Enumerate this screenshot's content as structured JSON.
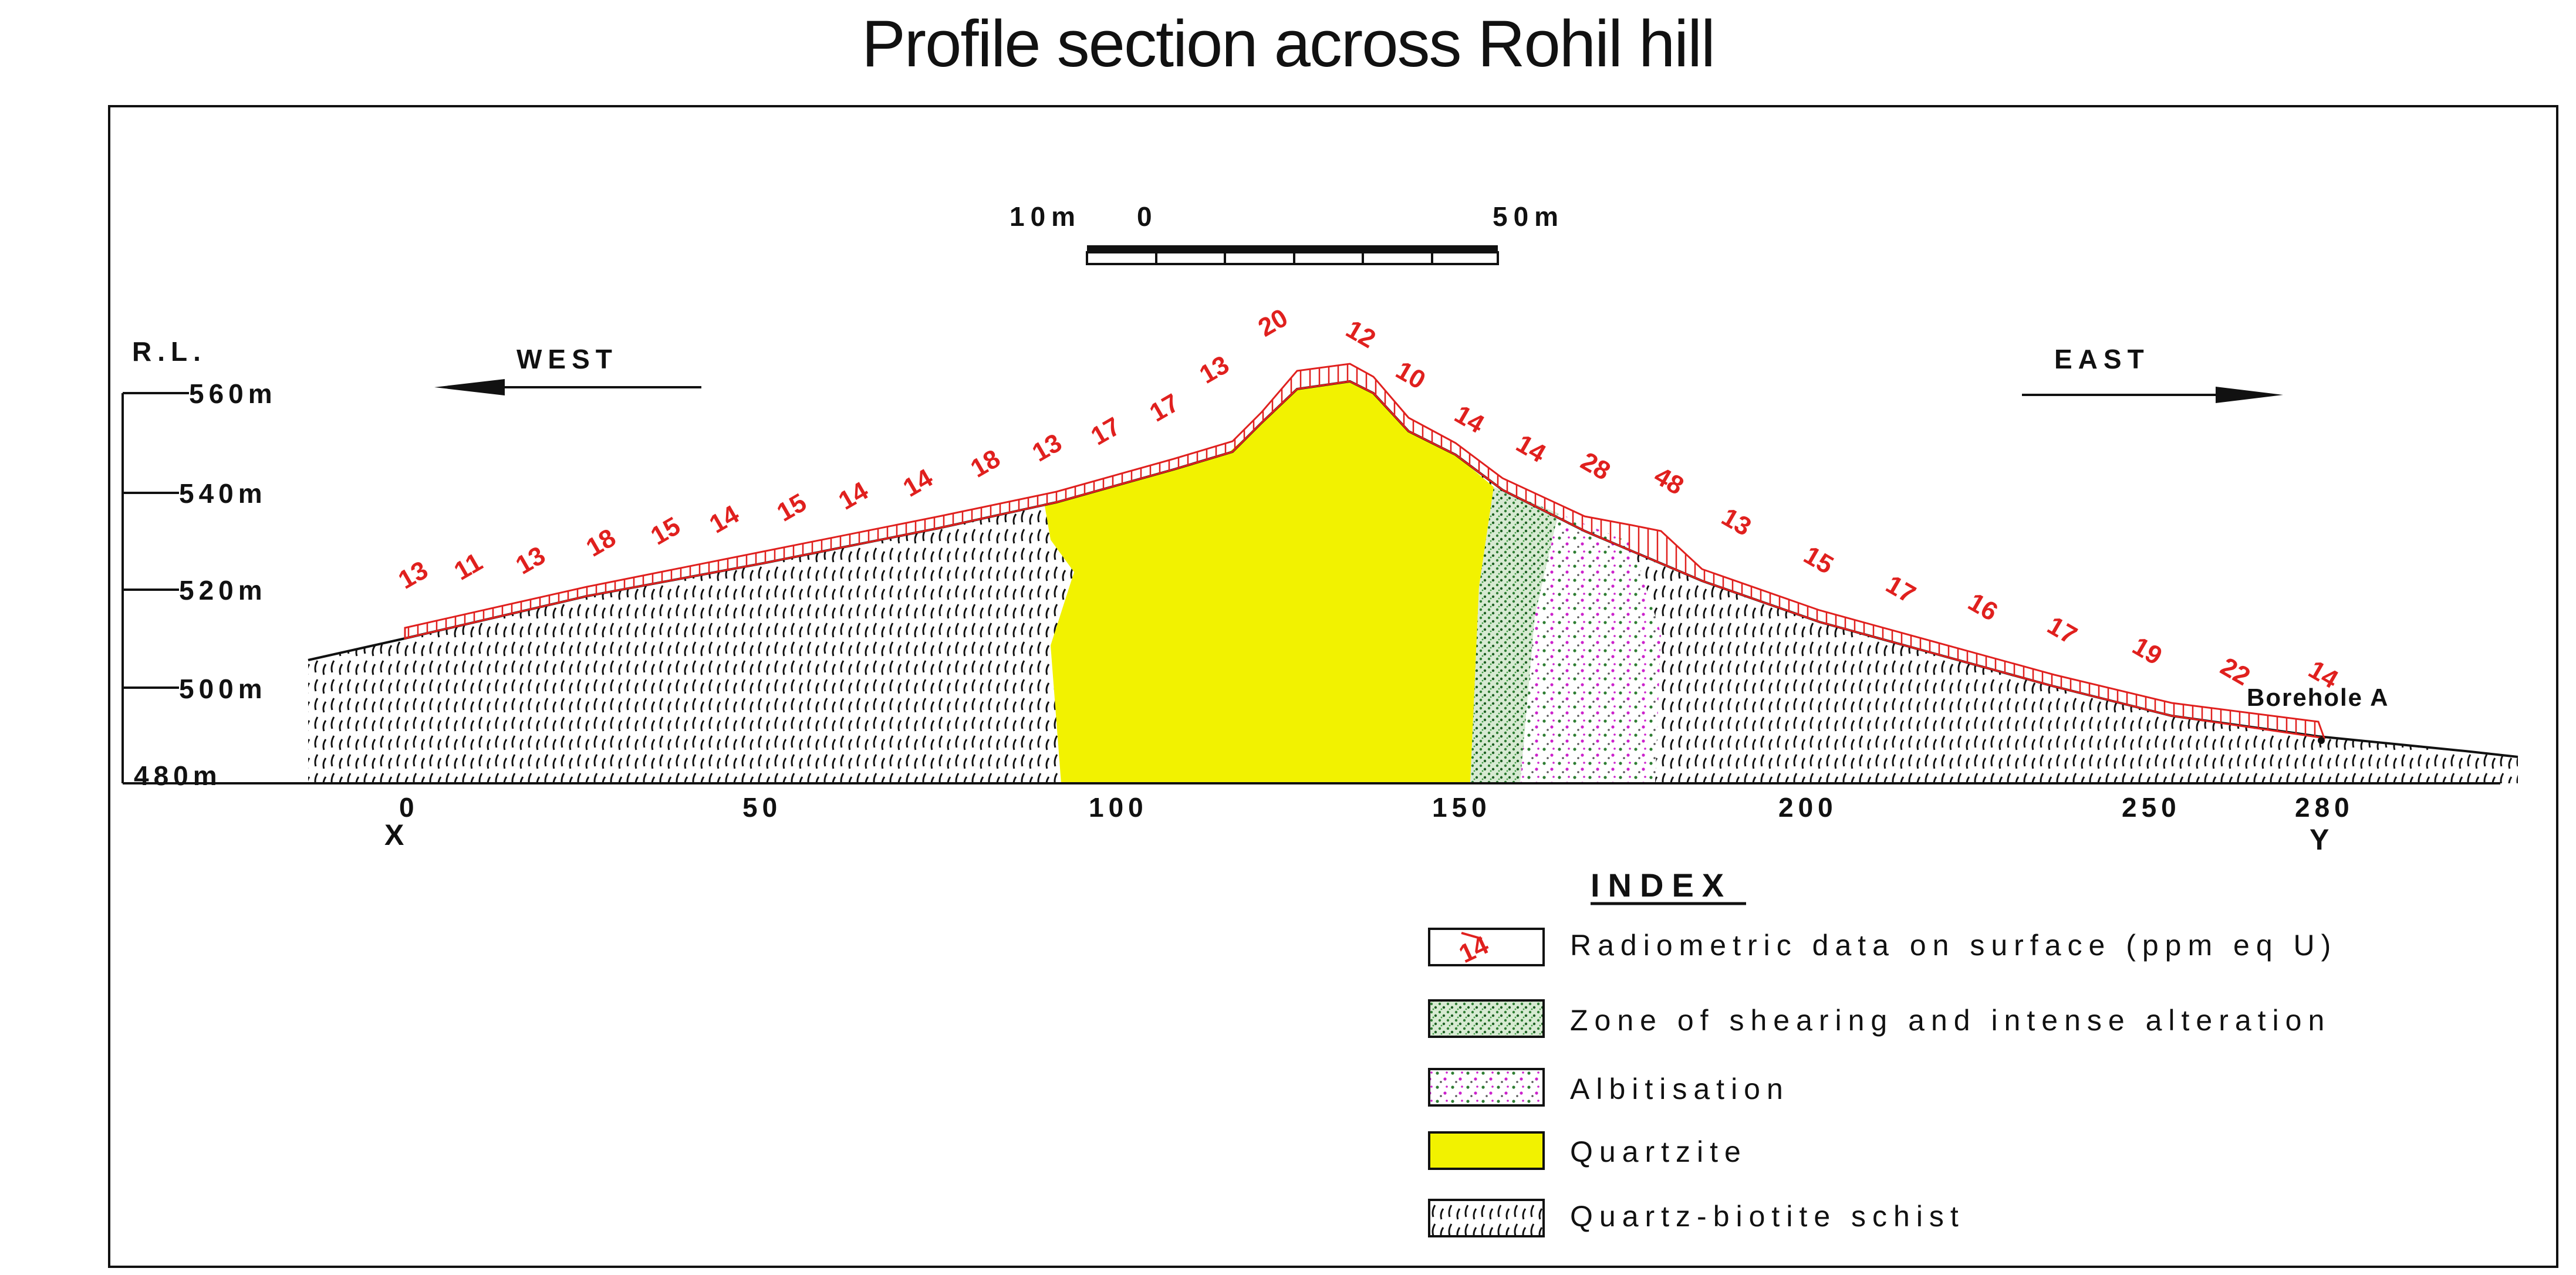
{
  "title": "Profile section across Rohil hill",
  "scale_bar": {
    "left_label": "10m",
    "zero_label": "0",
    "right_label": "50m"
  },
  "rl_label": "R.L.",
  "elevation_ticks": [
    "560m",
    "540m",
    "520m",
    "500m",
    "480m"
  ],
  "distance_ticks": [
    "0",
    "50",
    "100",
    "150",
    "200",
    "250",
    "280"
  ],
  "section_ends": {
    "start": "X",
    "end": "Y"
  },
  "direction": {
    "west": "WEST",
    "east": "EAST"
  },
  "borehole_label": "Borehole A",
  "radiometric_values": [
    "13",
    "11",
    "13",
    "18",
    "15",
    "14",
    "15",
    "14",
    "14",
    "18",
    "13",
    "17",
    "17",
    "13",
    "20",
    "12",
    "10",
    "14",
    "14",
    "28",
    "48",
    "13",
    "15",
    "17",
    "16",
    "17",
    "19",
    "22",
    "14"
  ],
  "legend": {
    "title": "INDEX",
    "sample_value": "14",
    "items": [
      {
        "key": "radiometric",
        "label": "Radiometric data on surface (ppm eq U)"
      },
      {
        "key": "shear",
        "label": "Zone of shearing and intense alteration"
      },
      {
        "key": "albite",
        "label": "Albitisation"
      },
      {
        "key": "quartzite",
        "label": "Quartzite"
      },
      {
        "key": "schist",
        "label": "Quartz-biotite schist"
      }
    ]
  },
  "colors": {
    "quartzite": "#f2f200",
    "radiometric": "#e0201e",
    "shear": "#2e7d32",
    "albite": "#cc22cc"
  }
}
